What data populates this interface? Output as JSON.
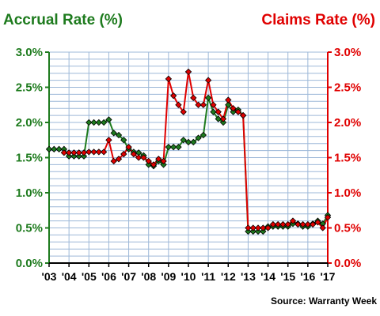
{
  "chart_data": {
    "type": "line",
    "title_left": "Accrual Rate (%)",
    "title_right": "Claims Rate (%)",
    "source": "Source: Warranty Week",
    "y_ticks_left": [
      "0.0%",
      "0.5%",
      "1.0%",
      "1.5%",
      "2.0%",
      "2.5%",
      "3.0%"
    ],
    "y_ticks_right": [
      "0.0%",
      "0.5%",
      "1.0%",
      "1.5%",
      "2.0%",
      "2.5%",
      "3.0%"
    ],
    "ylim": [
      0,
      3.0
    ],
    "x_ticks": [
      "'03",
      "'04",
      "'05",
      "'06",
      "'07",
      "'08",
      "'09",
      "'10",
      "'11",
      "'12",
      "'13",
      "'14",
      "'15",
      "'16",
      "'17"
    ],
    "xlim": [
      2003,
      2017
    ],
    "grid": true,
    "colors": {
      "accrual": "#1e7b1e",
      "claims": "#e00000",
      "grid": "#9db8d8"
    },
    "series": [
      {
        "name": "Accrual Rate (%)",
        "axis": "left",
        "x": [
          2003.0,
          2003.25,
          2003.5,
          2003.75,
          2004.0,
          2004.25,
          2004.5,
          2004.75,
          2005.0,
          2005.25,
          2005.5,
          2005.75,
          2006.0,
          2006.25,
          2006.5,
          2006.75,
          2007.0,
          2007.25,
          2007.5,
          2007.75,
          2008.0,
          2008.25,
          2008.5,
          2008.75,
          2009.0,
          2009.25,
          2009.5,
          2009.75,
          2010.0,
          2010.25,
          2010.5,
          2010.75,
          2011.0,
          2011.25,
          2011.5,
          2011.75,
          2012.0,
          2012.25,
          2012.5,
          2012.75,
          2013.0,
          2013.25,
          2013.5,
          2013.75,
          2014.0,
          2014.25,
          2014.5,
          2014.75,
          2015.0,
          2015.25,
          2015.5,
          2015.75,
          2016.0,
          2016.25,
          2016.5,
          2016.75,
          2017.0
        ],
        "values": [
          1.62,
          1.62,
          1.62,
          1.62,
          1.52,
          1.52,
          1.52,
          1.52,
          2.0,
          2.0,
          2.0,
          2.0,
          2.04,
          1.85,
          1.82,
          1.75,
          1.62,
          1.58,
          1.57,
          1.53,
          1.4,
          1.38,
          1.45,
          1.4,
          1.65,
          1.65,
          1.65,
          1.75,
          1.72,
          1.72,
          1.78,
          1.82,
          2.35,
          2.15,
          2.05,
          2.0,
          2.25,
          2.15,
          2.18,
          2.1,
          0.45,
          0.45,
          0.45,
          0.45,
          0.52,
          0.52,
          0.52,
          0.52,
          0.52,
          0.56,
          0.56,
          0.52,
          0.52,
          0.56,
          0.6,
          0.56,
          0.68
        ]
      },
      {
        "name": "Claims Rate (%)",
        "axis": "right",
        "x": [
          2003.75,
          2004.0,
          2004.25,
          2004.5,
          2004.75,
          2005.0,
          2005.25,
          2005.5,
          2005.75,
          2006.0,
          2006.25,
          2006.5,
          2006.75,
          2007.0,
          2007.25,
          2007.5,
          2007.75,
          2008.0,
          2008.25,
          2008.5,
          2008.75,
          2009.0,
          2009.25,
          2009.5,
          2009.75,
          2010.0,
          2010.25,
          2010.5,
          2010.75,
          2011.0,
          2011.25,
          2011.5,
          2011.75,
          2012.0,
          2012.25,
          2012.5,
          2012.75,
          2013.0,
          2013.25,
          2013.5,
          2013.75,
          2014.0,
          2014.25,
          2014.5,
          2014.75,
          2015.0,
          2015.25,
          2015.5,
          2015.75,
          2016.0,
          2016.25,
          2016.5,
          2016.75,
          2017.0
        ],
        "values": [
          1.57,
          1.57,
          1.57,
          1.57,
          1.57,
          1.58,
          1.58,
          1.58,
          1.58,
          1.75,
          1.45,
          1.48,
          1.55,
          1.65,
          1.55,
          1.5,
          1.5,
          1.45,
          1.4,
          1.48,
          1.45,
          2.62,
          2.38,
          2.25,
          2.15,
          2.72,
          2.35,
          2.25,
          2.25,
          2.6,
          2.25,
          2.15,
          2.05,
          2.32,
          2.2,
          2.15,
          2.1,
          0.5,
          0.5,
          0.5,
          0.5,
          0.5,
          0.55,
          0.55,
          0.55,
          0.55,
          0.6,
          0.55,
          0.55,
          0.55,
          0.55,
          0.58,
          0.5,
          0.65
        ]
      }
    ]
  }
}
